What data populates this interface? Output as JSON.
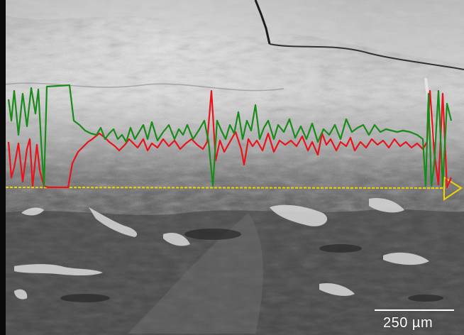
{
  "image": {
    "kind": "SEM micrograph with EDS line-scan overlay",
    "scale_bar": {
      "label": "250 µm"
    },
    "line_scan": {
      "series": [
        {
          "color": "#e8141c"
        },
        {
          "color": "#1a8a1a"
        }
      ],
      "scan_line_color": "#f2d200"
    }
  }
}
